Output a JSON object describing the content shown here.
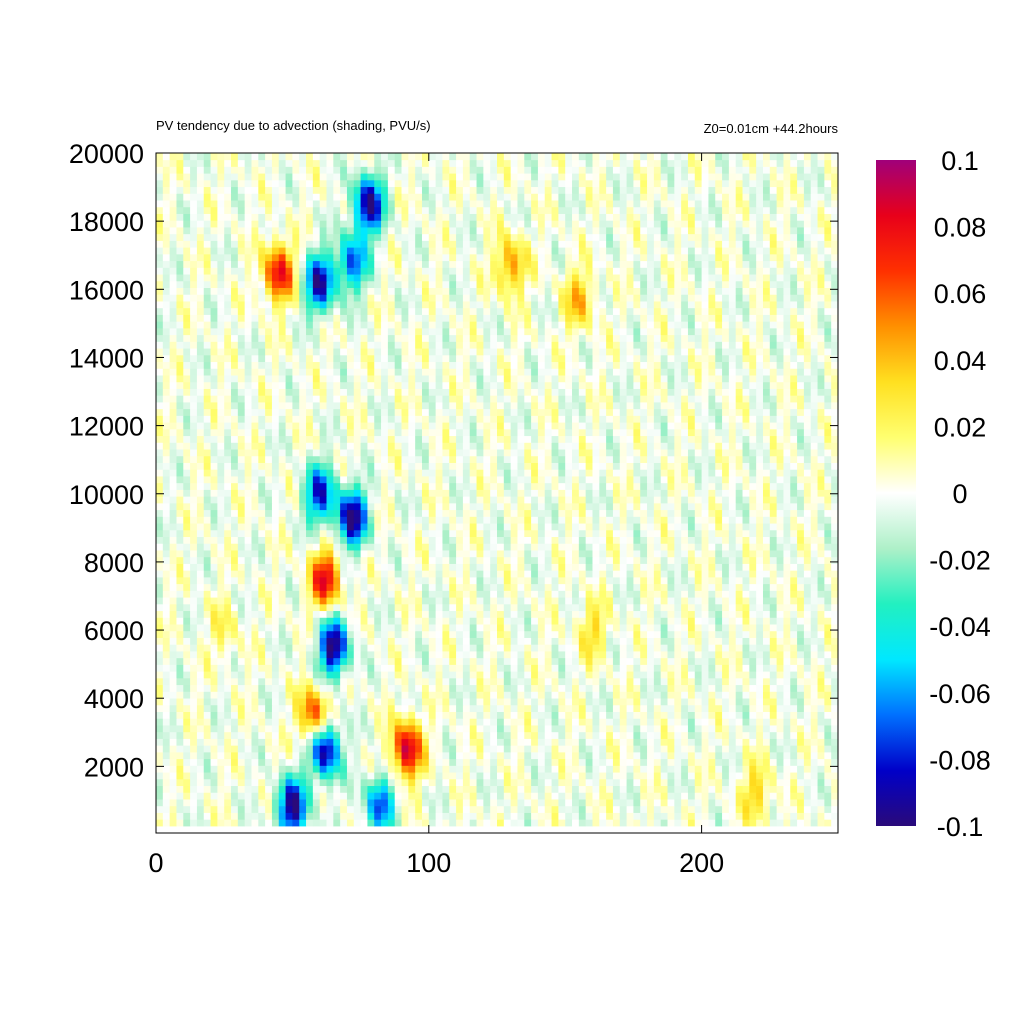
{
  "chart_data": {
    "type": "heatmap",
    "title": "PV tendency due to advection (shading, PVU/s)",
    "subtitle": "Z0=0.01cm   +44.2hours",
    "xlabel": "",
    "ylabel": "",
    "xlim": [
      0,
      250
    ],
    "ylim": [
      250,
      20000
    ],
    "x_ticks": [
      "0",
      "100",
      "200"
    ],
    "x_tick_values": [
      0,
      100,
      200
    ],
    "y_ticks": [
      "2000",
      "4000",
      "6000",
      "8000",
      "10000",
      "12000",
      "14000",
      "16000",
      "18000",
      "20000"
    ],
    "y_tick_values": [
      2000,
      4000,
      6000,
      8000,
      10000,
      12000,
      14000,
      16000,
      18000,
      20000
    ],
    "colorbar": {
      "min": -0.1,
      "max": 0.1,
      "ticks": [
        "0.1",
        "0.08",
        "0.06",
        "0.04",
        "0.02",
        "0",
        "-0.02",
        "-0.04",
        "-0.06",
        "-0.08",
        "-0.1"
      ],
      "tick_values": [
        0.1,
        0.08,
        0.06,
        0.04,
        0.02,
        0,
        -0.02,
        -0.04,
        -0.06,
        -0.08,
        -0.1
      ],
      "colors": [
        "#2a0a7a",
        "#0000c8",
        "#0070ff",
        "#00e8ff",
        "#22f0c0",
        "#aef0c8",
        "#ffffff",
        "#ffff70",
        "#ffe020",
        "#ff9000",
        "#ff3000",
        "#e8001a",
        "#a0007a"
      ]
    },
    "features": [
      {
        "x": 45,
        "y": 16500,
        "value": 0.08
      },
      {
        "x": 60,
        "y": 16200,
        "value": -0.09
      },
      {
        "x": 72,
        "y": 16800,
        "value": -0.07
      },
      {
        "x": 78,
        "y": 18500,
        "value": -0.1
      },
      {
        "x": 130,
        "y": 16700,
        "value": 0.05
      },
      {
        "x": 155,
        "y": 15700,
        "value": 0.04
      },
      {
        "x": 60,
        "y": 10000,
        "value": -0.08
      },
      {
        "x": 72,
        "y": 9300,
        "value": -0.1
      },
      {
        "x": 62,
        "y": 7500,
        "value": 0.08
      },
      {
        "x": 65,
        "y": 5500,
        "value": -0.1
      },
      {
        "x": 58,
        "y": 3500,
        "value": 0.07
      },
      {
        "x": 62,
        "y": 2500,
        "value": -0.1
      },
      {
        "x": 50,
        "y": 800,
        "value": -0.1
      },
      {
        "x": 92,
        "y": 2500,
        "value": 0.09
      },
      {
        "x": 82,
        "y": 900,
        "value": -0.07
      },
      {
        "x": 160,
        "y": 6000,
        "value": 0.03
      },
      {
        "x": 220,
        "y": 1200,
        "value": 0.035
      },
      {
        "x": 25,
        "y": 6000,
        "value": 0.02
      }
    ]
  }
}
